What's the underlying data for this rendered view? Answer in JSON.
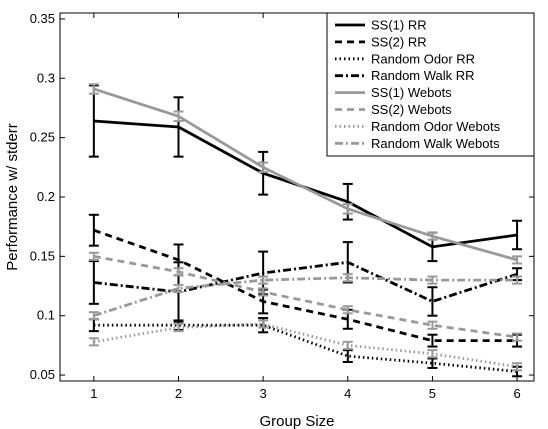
{
  "chart_data": {
    "type": "line",
    "title": "",
    "xlabel": "Group Size",
    "ylabel": "Performance w/ stderr",
    "x": [
      1,
      2,
      3,
      4,
      5,
      6
    ],
    "xlim": [
      0.6,
      6.2
    ],
    "ylim": [
      0.045,
      0.355
    ],
    "xticks": [
      1,
      2,
      3,
      4,
      5,
      6
    ],
    "yticks": [
      0.05,
      0.1,
      0.15,
      0.2,
      0.25,
      0.3,
      0.35
    ],
    "ytick_labels": [
      "0.05",
      "0.1",
      "0.15",
      "0.2",
      "0.25",
      "0.3",
      "0.35"
    ],
    "legend_position": "top-right",
    "grid": false,
    "series": [
      {
        "name": "SS(1)  RR",
        "color": "#000000",
        "dash": "solid",
        "values": [
          0.264,
          0.259,
          0.22,
          0.196,
          0.158,
          0.168
        ],
        "err": [
          0.03,
          0.025,
          0.018,
          0.015,
          0.012,
          0.012
        ]
      },
      {
        "name": "SS(2)  RR",
        "color": "#000000",
        "dash": "dashed",
        "values": [
          0.172,
          0.147,
          0.112,
          0.097,
          0.079,
          0.079
        ],
        "err": [
          0.013,
          0.013,
          0.01,
          0.008,
          0.005,
          0.005
        ]
      },
      {
        "name": "Random Odor  RR",
        "color": "#000000",
        "dash": "dotted",
        "values": [
          0.092,
          0.092,
          0.092,
          0.066,
          0.06,
          0.053
        ],
        "err": [
          0.005,
          0.004,
          0.006,
          0.005,
          0.004,
          0.004
        ]
      },
      {
        "name": "Random Walk  RR",
        "color": "#000000",
        "dash": "dashdot",
        "values": [
          0.128,
          0.12,
          0.136,
          0.145,
          0.112,
          0.135
        ],
        "err": [
          0.018,
          0.025,
          0.018,
          0.017,
          0.012,
          0.005
        ]
      },
      {
        "name": "SS(1)  Webots",
        "color": "#999999",
        "dash": "solid",
        "values": [
          0.291,
          0.268,
          0.225,
          0.19,
          0.167,
          0.147
        ],
        "err": [
          0.004,
          0.004,
          0.004,
          0.004,
          0.003,
          0.003
        ]
      },
      {
        "name": "SS(2)  Webots",
        "color": "#999999",
        "dash": "dashed",
        "values": [
          0.15,
          0.137,
          0.12,
          0.105,
          0.092,
          0.082
        ],
        "err": [
          0.003,
          0.003,
          0.003,
          0.003,
          0.003,
          0.003
        ]
      },
      {
        "name": "Random Odor  Webots",
        "color": "#999999",
        "dash": "dotted",
        "values": [
          0.078,
          0.09,
          0.093,
          0.075,
          0.068,
          0.057
        ],
        "err": [
          0.003,
          0.003,
          0.003,
          0.003,
          0.003,
          0.003
        ]
      },
      {
        "name": "Random Walk  Webots",
        "color": "#999999",
        "dash": "dashdot",
        "values": [
          0.1,
          0.123,
          0.13,
          0.132,
          0.13,
          0.13
        ],
        "err": [
          0.003,
          0.003,
          0.003,
          0.003,
          0.003,
          0.003
        ]
      }
    ]
  }
}
